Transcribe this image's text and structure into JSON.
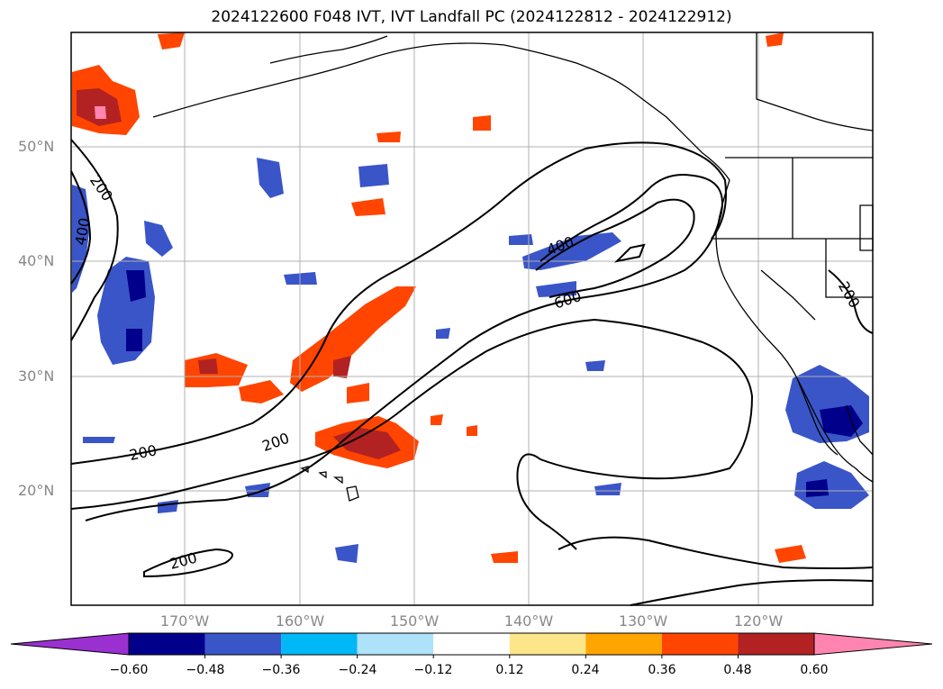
{
  "title": "2024122600 F048 IVT, IVT Landfall PC (2024122812 - 2024122912)",
  "lat_labels": [
    "50°N",
    "40°N",
    "30°N",
    "20°N"
  ],
  "lon_labels": [
    "170°W",
    "160°W",
    "150°W",
    "140°W",
    "130°W",
    "120°W"
  ],
  "contour_labels": [
    "200",
    "400",
    "200",
    "200",
    "200",
    "400",
    "600",
    "200"
  ],
  "colorbar": {
    "ticks": [
      "−0.60",
      "−0.48",
      "−0.36",
      "−0.24",
      "−0.12",
      "0.12",
      "0.24",
      "0.36",
      "0.48",
      "0.60"
    ],
    "colors": [
      "#9b30d0",
      "#00008b",
      "#3a55c8",
      "#00b7f7",
      "#aee2fa",
      "#ffffff",
      "#fde68a",
      "#ffa500",
      "#ff4500",
      "#b22222",
      "#ff85b0"
    ]
  },
  "colors": {
    "coastline": "#000000",
    "grid": "#b0b0b0",
    "contour": "#000000"
  }
}
